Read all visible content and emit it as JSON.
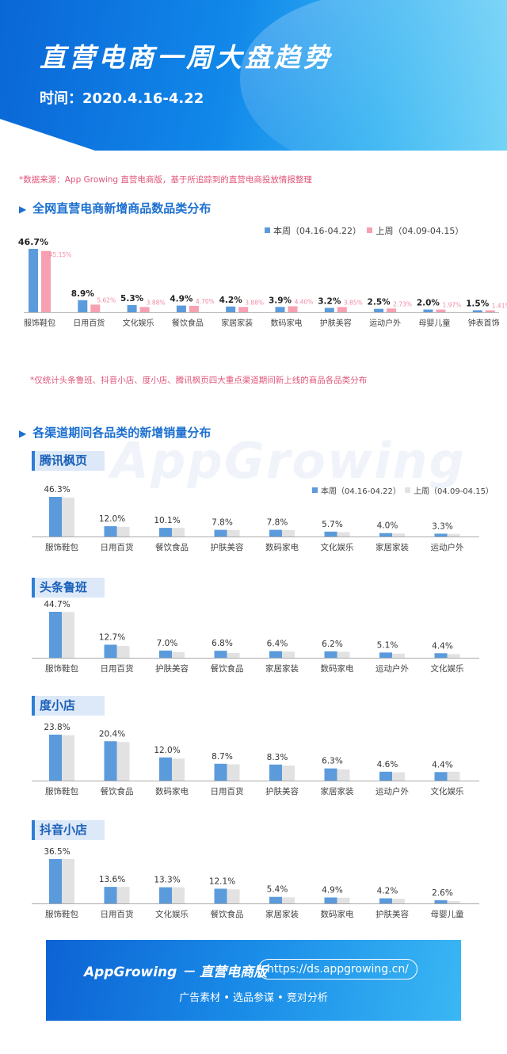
{
  "header": {
    "title": "直营电商一周大盘趋势",
    "date": "时间：2020.4.16-4.22"
  },
  "source_note": "*数据来源：App Growing 直营电商版，基于所追踪到的直营电商投放情报整理",
  "colors": {
    "this_week": "#5b9bdc",
    "last_week_main": "#f6a0b2",
    "last_week_channel": "#e2e2e2",
    "accent": "#1b6fd0"
  },
  "section1": {
    "title": "全网直营电商新增商品数品类分布",
    "legend_current": "本周（04.16-04.22）",
    "legend_previous": "上周（04.09-04.15）",
    "note": "*仅统计头条鲁班、抖音小店、度小店、腾讯枫页四大重点渠道期间新上线的商品各品类分布"
  },
  "section2": {
    "title": "各渠道期间各品类的新增销量分布",
    "legend_current": "本周（04.16-04.22）",
    "legend_previous": "上周（04.09-04.15）"
  },
  "watermark": "AppGrowing",
  "chart_data": [
    {
      "type": "bar",
      "name": "全网直营电商新增商品数品类分布",
      "categories": [
        "服饰鞋包",
        "日用百货",
        "文化娱乐",
        "餐饮食品",
        "家居家装",
        "数码家电",
        "护肤美容",
        "运动户外",
        "母婴儿童",
        "钟表首饰"
      ],
      "series": [
        {
          "name": "本周（04.16-04.22）",
          "values": [
            46.7,
            8.9,
            5.3,
            4.9,
            4.2,
            3.9,
            3.2,
            2.5,
            2.0,
            1.5
          ],
          "labels": [
            "46.7%",
            "8.9%",
            "5.3%",
            "4.9%",
            "4.2%",
            "3.9%",
            "3.2%",
            "2.5%",
            "2.0%",
            "1.5%"
          ]
        },
        {
          "name": "上周（04.09-04.15）",
          "values": [
            45.15,
            5.62,
            3.88,
            4.7,
            3.88,
            4.4,
            3.85,
            2.73,
            1.97,
            1.41
          ],
          "labels": [
            "45.15%",
            "5.62%",
            "3.88%",
            "4.70%",
            "3.88%",
            "4.40%",
            "3.85%",
            "2.73%",
            "1.97%",
            "1.41%"
          ]
        }
      ]
    },
    {
      "type": "bar",
      "name": "腾讯枫页",
      "categories": [
        "服饰鞋包",
        "日用百货",
        "餐饮食品",
        "护肤美容",
        "数码家电",
        "文化娱乐",
        "家居家装",
        "运动户外"
      ],
      "series": [
        {
          "name": "本周（04.16-04.22）",
          "values": [
            46.3,
            12.0,
            10.1,
            7.8,
            7.8,
            5.7,
            4.0,
            3.3
          ],
          "labels": [
            "46.3%",
            "12.0%",
            "10.1%",
            "7.8%",
            "7.8%",
            "5.7%",
            "4.0%",
            "3.3%"
          ]
        },
        {
          "name": "上周（04.09-04.15）",
          "values": [
            45.5,
            11.2,
            10.0,
            7.6,
            7.5,
            5.1,
            3.6,
            3.0
          ]
        }
      ]
    },
    {
      "type": "bar",
      "name": "头条鲁班",
      "categories": [
        "服饰鞋包",
        "日用百货",
        "护肤美容",
        "餐饮食品",
        "家居家装",
        "数码家电",
        "运动户外",
        "文化娱乐"
      ],
      "series": [
        {
          "name": "本周（04.16-04.22）",
          "values": [
            44.7,
            12.7,
            7.0,
            6.8,
            6.4,
            6.2,
            5.1,
            4.4
          ],
          "labels": [
            "44.7%",
            "12.7%",
            "7.0%",
            "6.8%",
            "6.4%",
            "6.2%",
            "5.1%",
            "4.4%"
          ]
        },
        {
          "name": "上周（04.09-04.15）",
          "values": [
            44.5,
            11.5,
            5.5,
            4.6,
            6.0,
            5.8,
            4.0,
            3.6
          ]
        }
      ]
    },
    {
      "type": "bar",
      "name": "度小店",
      "categories": [
        "服饰鞋包",
        "餐饮食品",
        "数码家电",
        "日用百货",
        "护肤美容",
        "家居家装",
        "运动户外",
        "文化娱乐"
      ],
      "series": [
        {
          "name": "本周（04.16-04.22）",
          "values": [
            23.8,
            20.4,
            12.0,
            8.7,
            8.3,
            6.3,
            4.6,
            4.4
          ],
          "labels": [
            "23.8%",
            "20.4%",
            "12.0%",
            "8.7%",
            "8.3%",
            "6.3%",
            "4.6%",
            "4.4%"
          ]
        },
        {
          "name": "上周（04.09-04.15）",
          "values": [
            23.5,
            20.0,
            11.4,
            8.4,
            7.8,
            5.8,
            4.3,
            4.6
          ]
        }
      ]
    },
    {
      "type": "bar",
      "name": "抖音小店",
      "categories": [
        "服饰鞋包",
        "日用百货",
        "文化娱乐",
        "餐饮食品",
        "家居家装",
        "数码家电",
        "护肤美容",
        "母婴儿童"
      ],
      "series": [
        {
          "name": "本周（04.16-04.22）",
          "values": [
            36.5,
            13.6,
            13.3,
            12.1,
            5.4,
            4.9,
            4.2,
            2.6
          ],
          "labels": [
            "36.5%",
            "13.6%",
            "13.3%",
            "12.1%",
            "5.4%",
            "4.9%",
            "4.2%",
            "2.6%"
          ]
        },
        {
          "name": "上周（04.09-04.15）",
          "values": [
            36.5,
            13.6,
            13.3,
            11.6,
            5.0,
            4.7,
            3.8,
            2.0
          ]
        }
      ]
    }
  ],
  "footer": {
    "brand": "AppGrowing － 直营电商版",
    "url": "https://ds.appgrowing.cn/",
    "tags": "广告素材 • 选品参谋 • 竞对分析"
  }
}
